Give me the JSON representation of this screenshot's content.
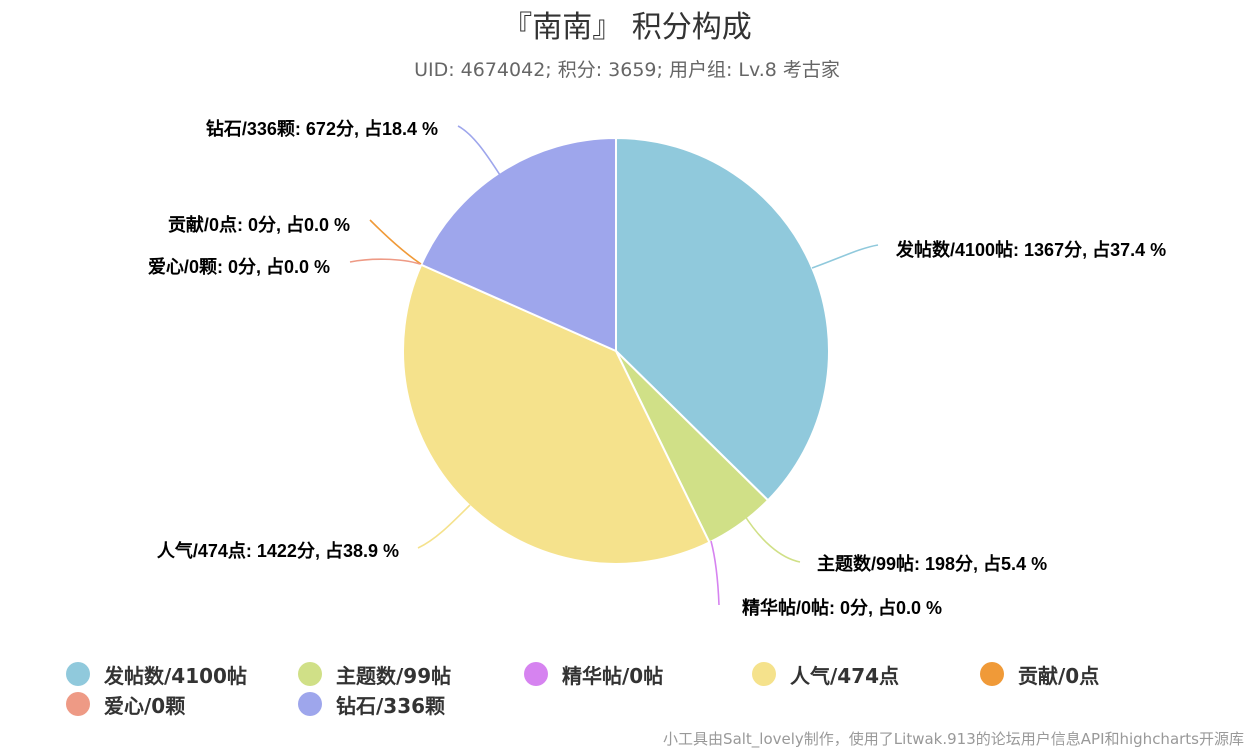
{
  "title": "『南南』 积分构成",
  "subtitle": "UID: 4674042; 积分: 3659; 用户组: Lv.8 考古家",
  "credits": "小工具由Salt_lovely制作，使用了Litwak.913的论坛用户信息API和highcharts开源库",
  "chart_data": {
    "type": "pie",
    "title": "『南南』 积分构成",
    "subtitle": "UID: 4674042; 积分: 3659; 用户组: Lv.8 考古家",
    "legend_position": "bottom",
    "slices": [
      {
        "name": "发帖数/4100帖",
        "value": 1367,
        "percent": 37.4,
        "color": "#90c9dc",
        "label": "发帖数/4100帖: 1367分, 占37.4 %"
      },
      {
        "name": "主题数/99帖",
        "value": 198,
        "percent": 5.4,
        "color": "#d0e087",
        "label": "主题数/99帖: 198分, 占5.4 %"
      },
      {
        "name": "精华帖/0帖",
        "value": 0,
        "percent": 0.0,
        "color": "#d683f0",
        "label": "精华帖/0帖: 0分, 占0.0 %"
      },
      {
        "name": "人气/474点",
        "value": 1422,
        "percent": 38.9,
        "color": "#f5e28c",
        "label": "人气/474点: 1422分, 占38.9 %"
      },
      {
        "name": "贡献/0点",
        "value": 0,
        "percent": 0.0,
        "color": "#f09a38",
        "label": "贡献/0点: 0分, 占0.0 %"
      },
      {
        "name": "爱心/0颗",
        "value": 0,
        "percent": 0.0,
        "color": "#ee9a85",
        "label": "爱心/0颗: 0分, 占0.0 %"
      },
      {
        "name": "钻石/336颗",
        "value": 672,
        "percent": 18.4,
        "color": "#9ea6ec",
        "label": "钻石/336颗: 672分, 占18.4 %"
      }
    ]
  }
}
